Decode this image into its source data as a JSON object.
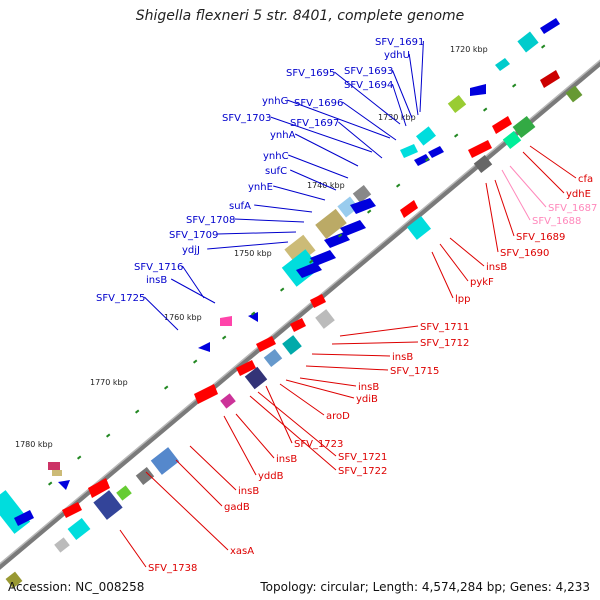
{
  "title": "Shigella flexneri 5 str. 8401, complete genome",
  "footer": {
    "accession": "Accession: NC_008258",
    "topology": "Topology: circular; Length: 4,574,284 bp; Genes: 4,233"
  },
  "colors": {
    "outer_label": "#0000cc",
    "inner_label": "#dd0000",
    "pink_label": "#ff88bb",
    "backbone": "#777777"
  },
  "ticks": [
    "1720 kbp",
    "1730 kbp",
    "1740 kbp",
    "1750 kbp",
    "1760 kbp",
    "1770 kbp",
    "1780 kbp"
  ],
  "outer_genes": [
    "SFV_1691",
    "ydhU",
    "SFV_1693",
    "SFV_1695",
    "SFV_1694",
    "ynhG",
    "SFV_1696",
    "SFV_1703",
    "SFV_1697",
    "ynhA",
    "ynhC",
    "sufC",
    "ynhE",
    "sufA",
    "SFV_1708",
    "SFV_1709",
    "ydjJ",
    "SFV_1716",
    "insB",
    "SFV_1725"
  ],
  "inner_genes": [
    "cfa",
    "ydhE",
    "SFV_1687",
    "SFV_1688",
    "SFV_1689",
    "SFV_1690",
    "insB",
    "pykF",
    "lpp",
    "SFV_1711",
    "SFV_1712",
    "insB",
    "SFV_1715",
    "insB",
    "ydiB",
    "aroD",
    "SFV_1723",
    "SFV_1721",
    "SFV_1722",
    "insB",
    "yddB",
    "insB",
    "gadB",
    "xasA",
    "SFV_1738"
  ]
}
